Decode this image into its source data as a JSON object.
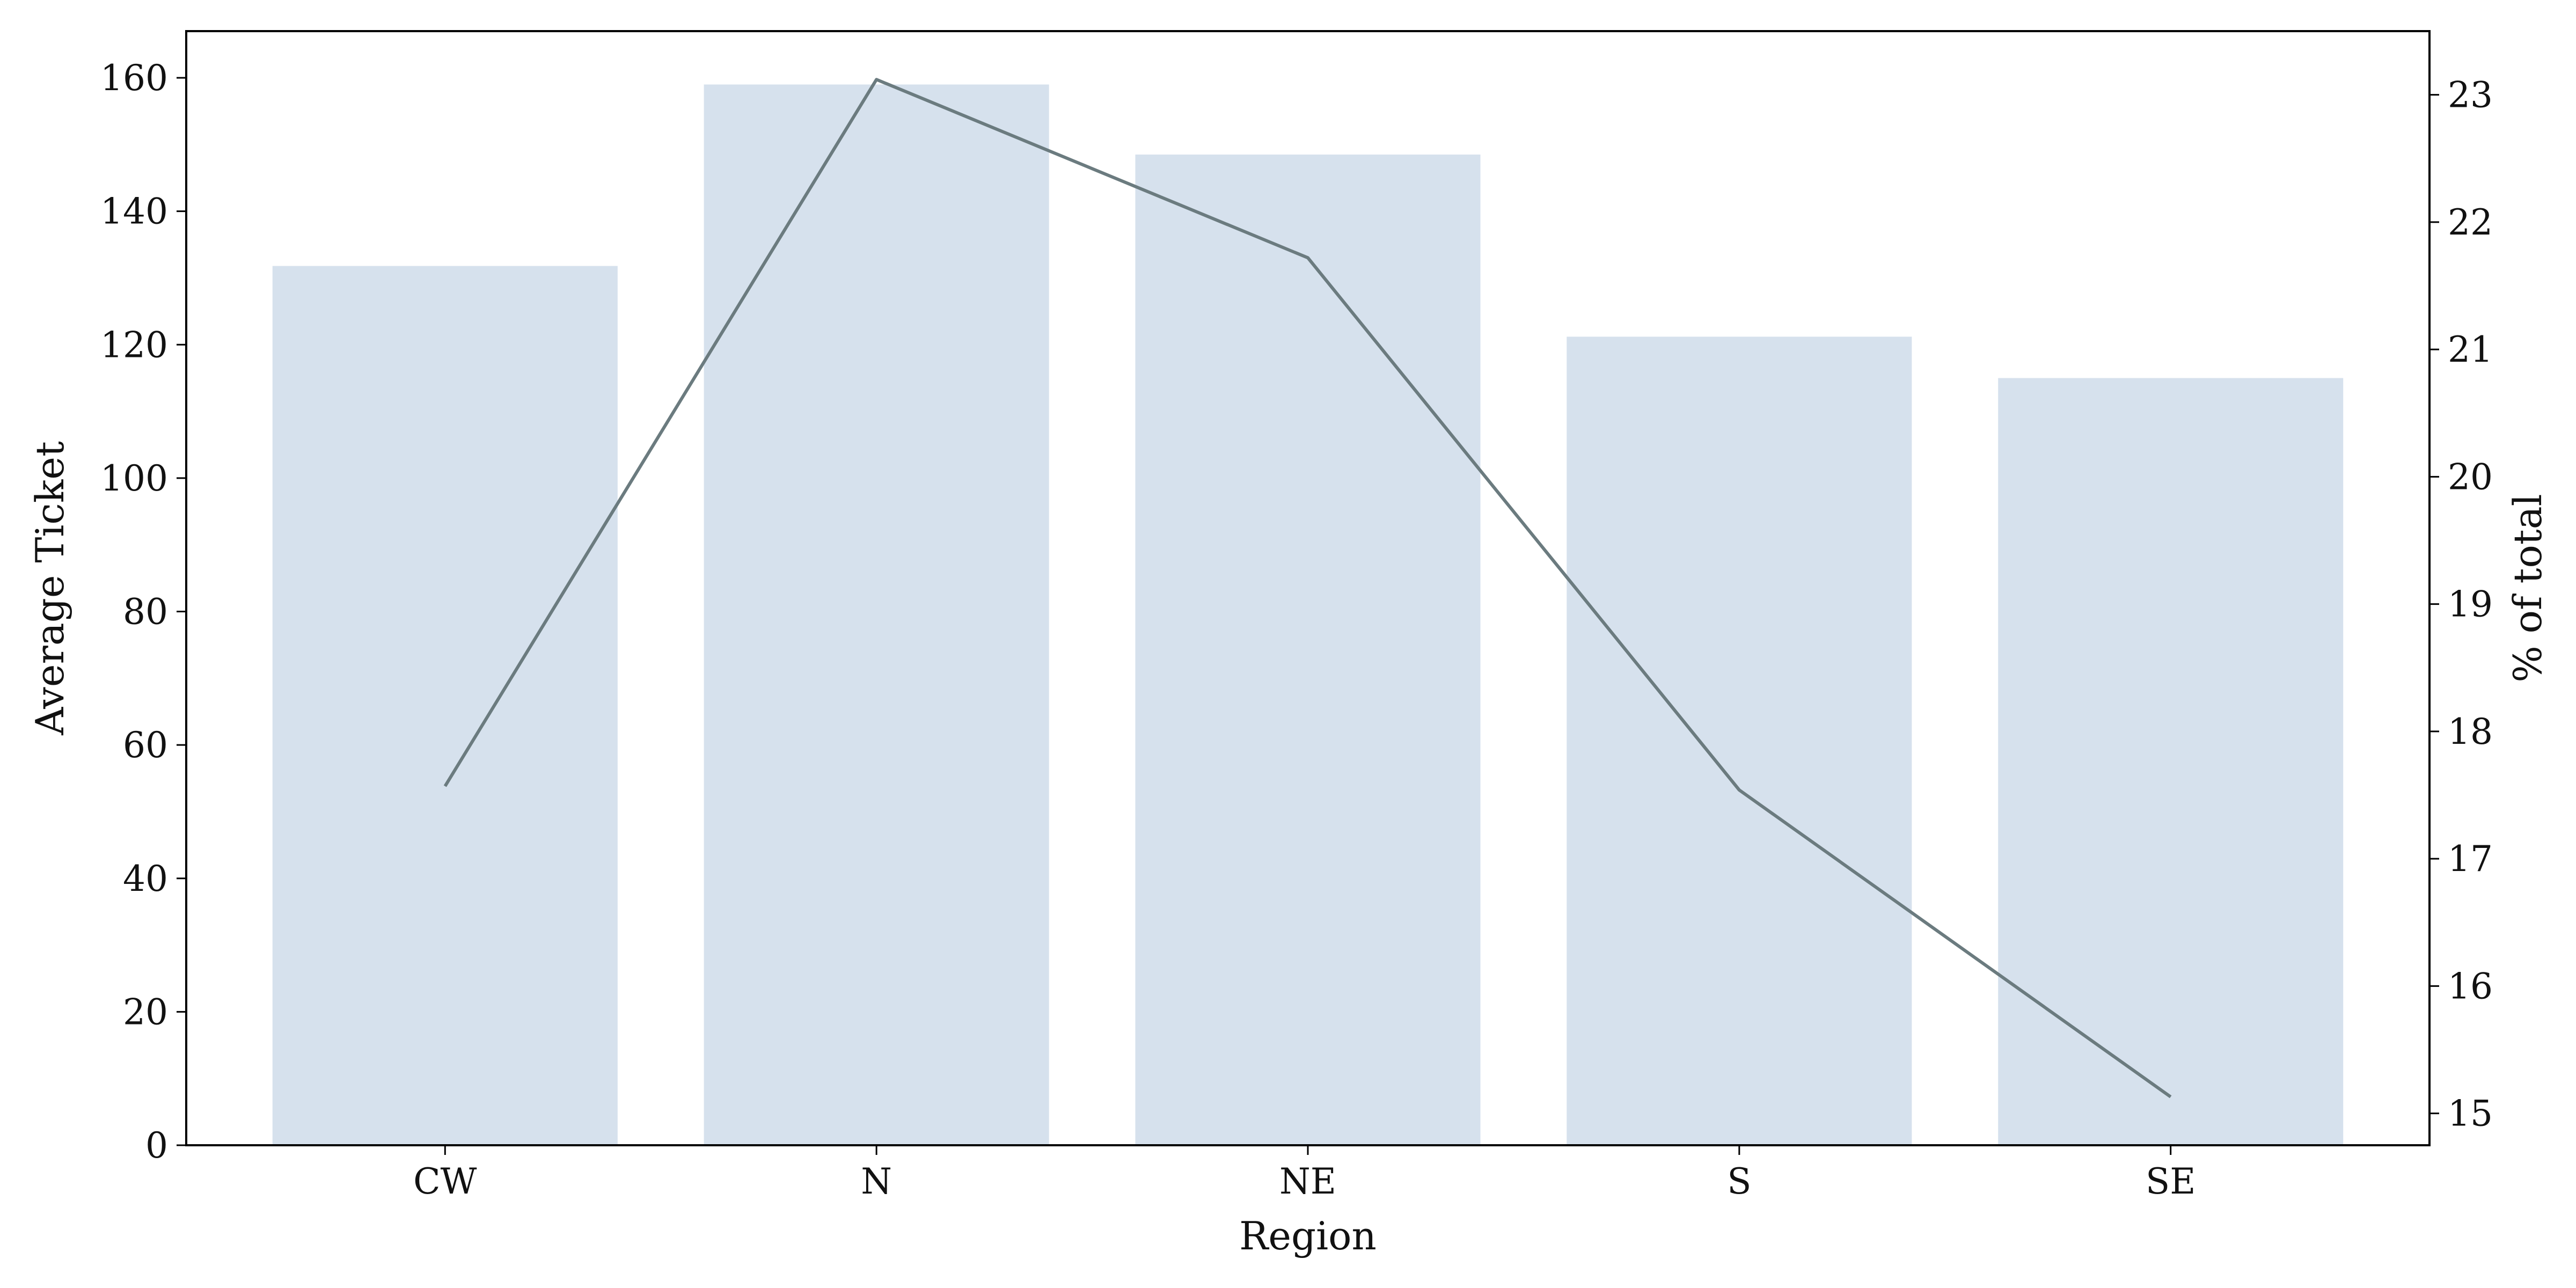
{
  "chart_data": {
    "type": "bar",
    "title": "",
    "xlabel": "Region",
    "ylabel": "Average Ticket",
    "y2label": "% of total",
    "categories": [
      "CW",
      "N",
      "NE",
      "S",
      "SE"
    ],
    "series": [
      {
        "type": "bar",
        "axis": "left",
        "color": "#d6e1ed",
        "values": [
          131.8,
          159.0,
          148.5,
          121.2,
          115.0
        ]
      },
      {
        "type": "line",
        "axis": "right",
        "color": "#6b7b7f",
        "values": [
          17.57,
          23.12,
          21.72,
          17.54,
          15.13
        ]
      }
    ],
    "ylim": [
      0,
      167
    ],
    "y2lim": [
      14.75,
      23.5
    ],
    "yticks": [
      0,
      20,
      40,
      60,
      80,
      100,
      120,
      140,
      160
    ],
    "y2ticks": [
      15,
      16,
      17,
      18,
      19,
      20,
      21,
      22,
      23
    ],
    "grid": false,
    "legend": "none"
  }
}
